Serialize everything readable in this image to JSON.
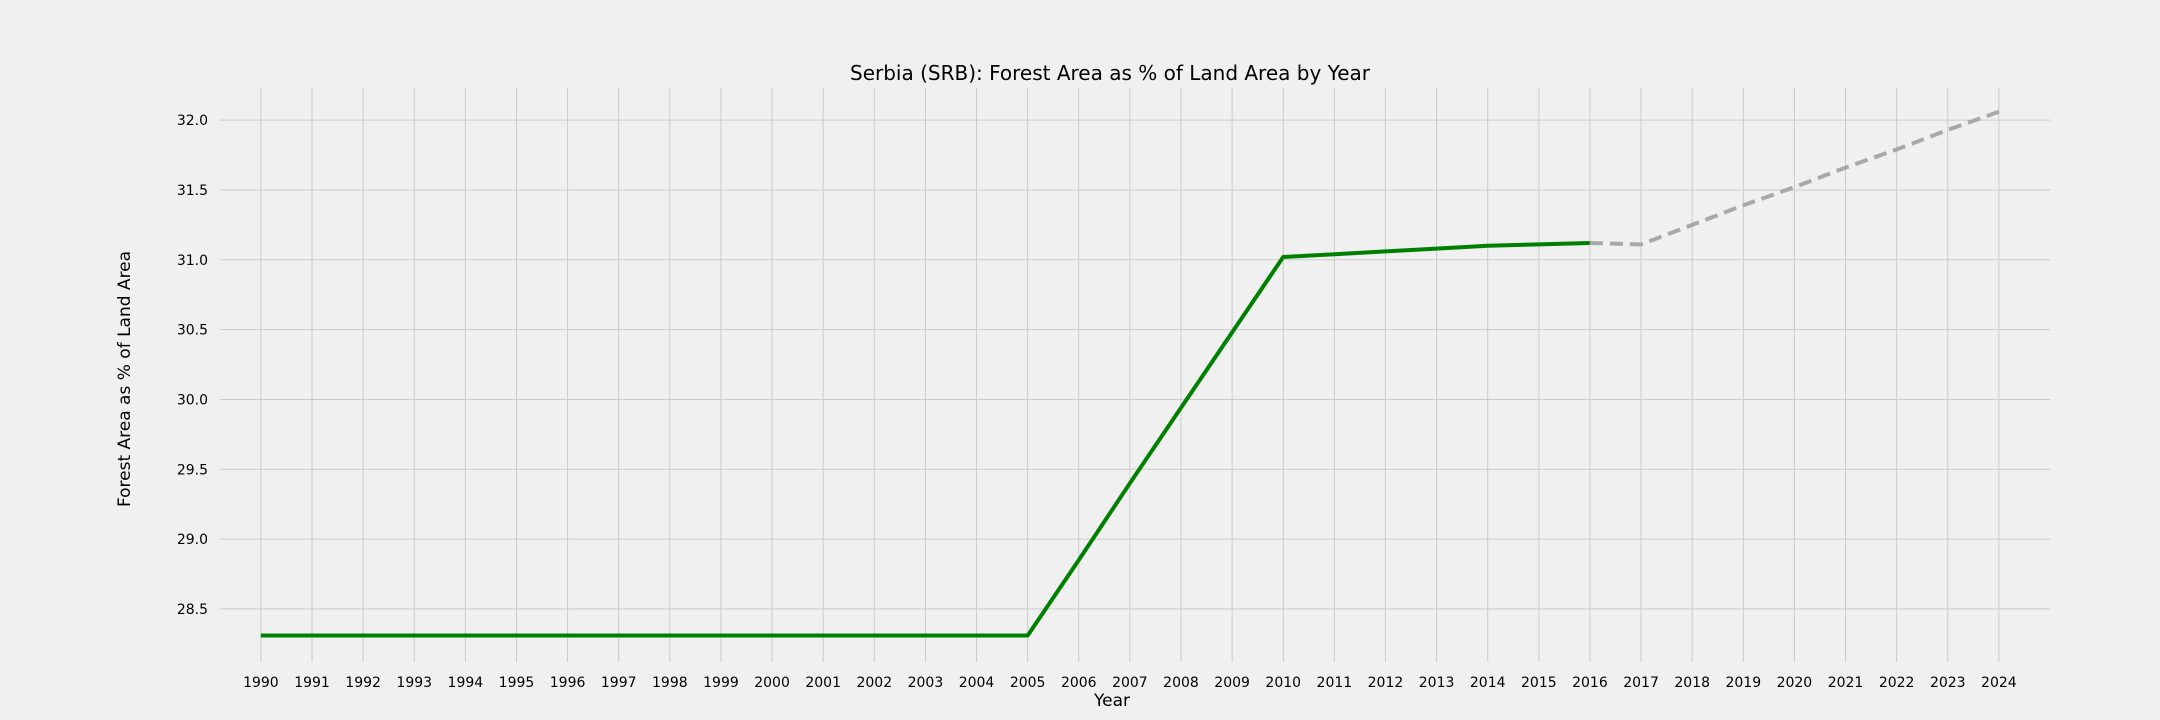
{
  "chart_data": {
    "type": "line",
    "title": "Serbia (SRB): Forest Area as % of Land Area by Year",
    "xlabel": "Year",
    "ylabel": "Forest Area as % of Land Area",
    "x_ticks": [
      "1990",
      "1991",
      "1992",
      "1993",
      "1994",
      "1995",
      "1996",
      "1997",
      "1998",
      "1999",
      "2000",
      "2001",
      "2002",
      "2003",
      "2004",
      "2005",
      "2006",
      "2007",
      "2008",
      "2009",
      "2010",
      "2011",
      "2012",
      "2013",
      "2014",
      "2015",
      "2016",
      "2017",
      "2018",
      "2019",
      "2020",
      "2021",
      "2022",
      "2023",
      "2024"
    ],
    "y_ticks": [
      "28.5",
      "29.0",
      "29.5",
      "30.0",
      "30.5",
      "31.0",
      "31.5",
      "32.0"
    ],
    "xlim": [
      1989.2,
      2025.0
    ],
    "ylim": [
      28.12,
      32.23
    ],
    "grid": true,
    "series": [
      {
        "style": "solid",
        "color": "#008000",
        "x": [
          1990,
          1991,
          1992,
          1993,
          1994,
          1995,
          1996,
          1997,
          1998,
          1999,
          2000,
          2001,
          2002,
          2003,
          2004,
          2005,
          2006,
          2007,
          2008,
          2009,
          2010,
          2011,
          2012,
          2013,
          2014,
          2015,
          2016
        ],
        "values": [
          28.31,
          28.31,
          28.31,
          28.31,
          28.31,
          28.31,
          28.31,
          28.31,
          28.31,
          28.31,
          28.31,
          28.31,
          28.31,
          28.31,
          28.31,
          28.31,
          28.85,
          29.4,
          29.94,
          30.48,
          31.02,
          31.04,
          31.06,
          31.08,
          31.1,
          31.11,
          31.12
        ]
      },
      {
        "style": "dashed",
        "color": "#a8a8a8",
        "x": [
          2016,
          2017,
          2018,
          2019,
          2020,
          2021,
          2022,
          2023,
          2024
        ],
        "values": [
          31.12,
          31.11,
          31.25,
          31.39,
          31.52,
          31.66,
          31.79,
          31.93,
          32.06
        ]
      }
    ]
  }
}
